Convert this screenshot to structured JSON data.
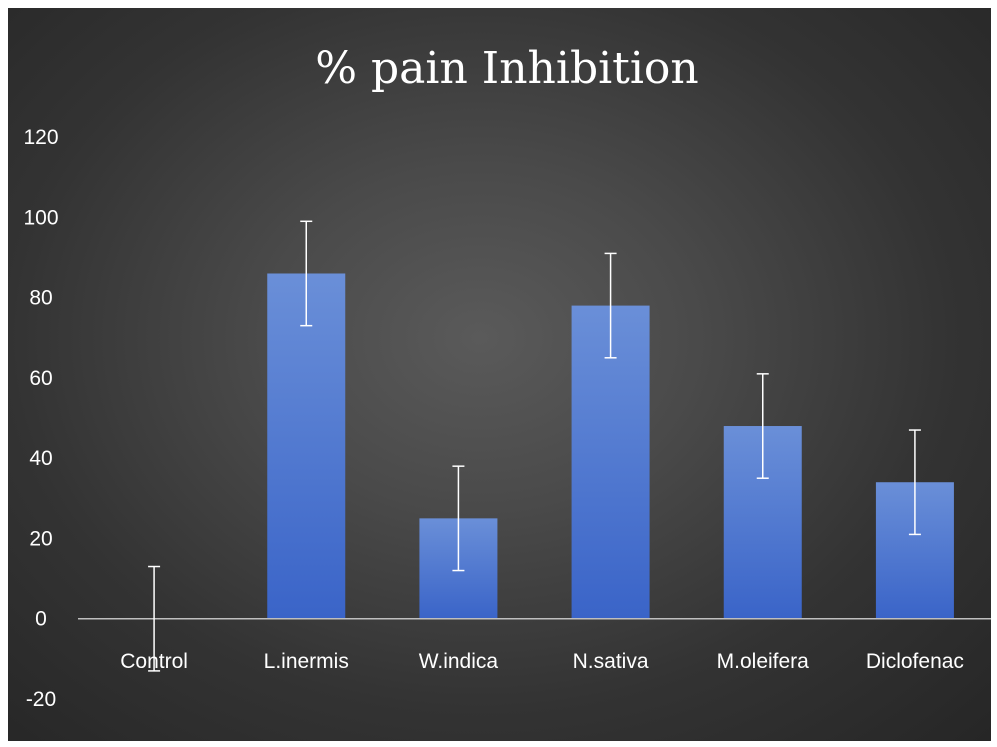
{
  "chart_data": {
    "type": "bar",
    "title": "% pain Inhibition",
    "xlabel": "",
    "ylabel": "",
    "categories": [
      "Control",
      "L.inermis",
      "W.indica",
      "N.sativa",
      "M.oleifera",
      "Diclofenac"
    ],
    "series": [
      {
        "values": [
          0,
          86,
          25,
          78,
          48,
          34
        ],
        "error": [
          13,
          13,
          13,
          13,
          13,
          13
        ]
      }
    ],
    "ylim": [
      -20,
      120
    ],
    "yticks": [
      -20,
      0,
      20,
      40,
      60,
      80,
      100,
      120
    ],
    "grid": false,
    "legend": "none",
    "colors": {
      "bar_top": "#6a8fd8",
      "bar_bottom": "#3a64c8",
      "error_bar": "#ffffff",
      "axis": "#bfbfbf",
      "background": "#3c3c3c"
    }
  }
}
